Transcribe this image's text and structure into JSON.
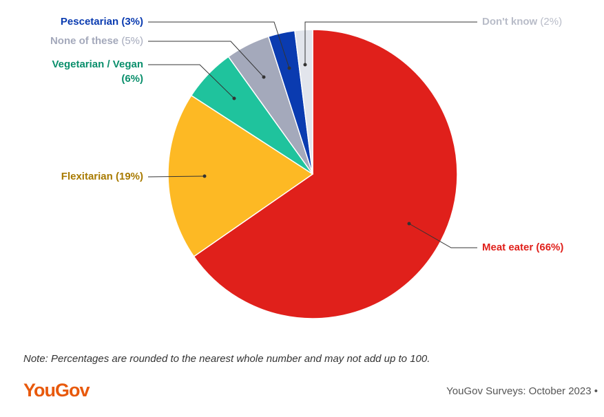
{
  "chart_data": {
    "type": "pie",
    "categories": [
      "Meat eater",
      "Flexitarian",
      "Vegetarian / Vegan",
      "None of these",
      "Pescetarian",
      "Don't know"
    ],
    "values": [
      66,
      19,
      6,
      5,
      3,
      2
    ],
    "value_labels": [
      "(66%)",
      "(19%)",
      "(6%)",
      "(5%)",
      "(3%)",
      "(2%)"
    ],
    "colors": [
      "#e0201b",
      "#fdb924",
      "#1fc39d",
      "#a4a9bb",
      "#0a3bb0",
      "#e2e5ec"
    ],
    "label_colors": [
      "#e0201b",
      "#a87a00",
      "#0a8f6c",
      "#a4a9bb",
      "#0a3bb0",
      "#b8bcc8"
    ]
  },
  "note": "Note: Percentages are rounded to the nearest whole number and may not add up to 100.",
  "brand": "YouGov",
  "source": "YouGov Surveys: October 2023 •"
}
